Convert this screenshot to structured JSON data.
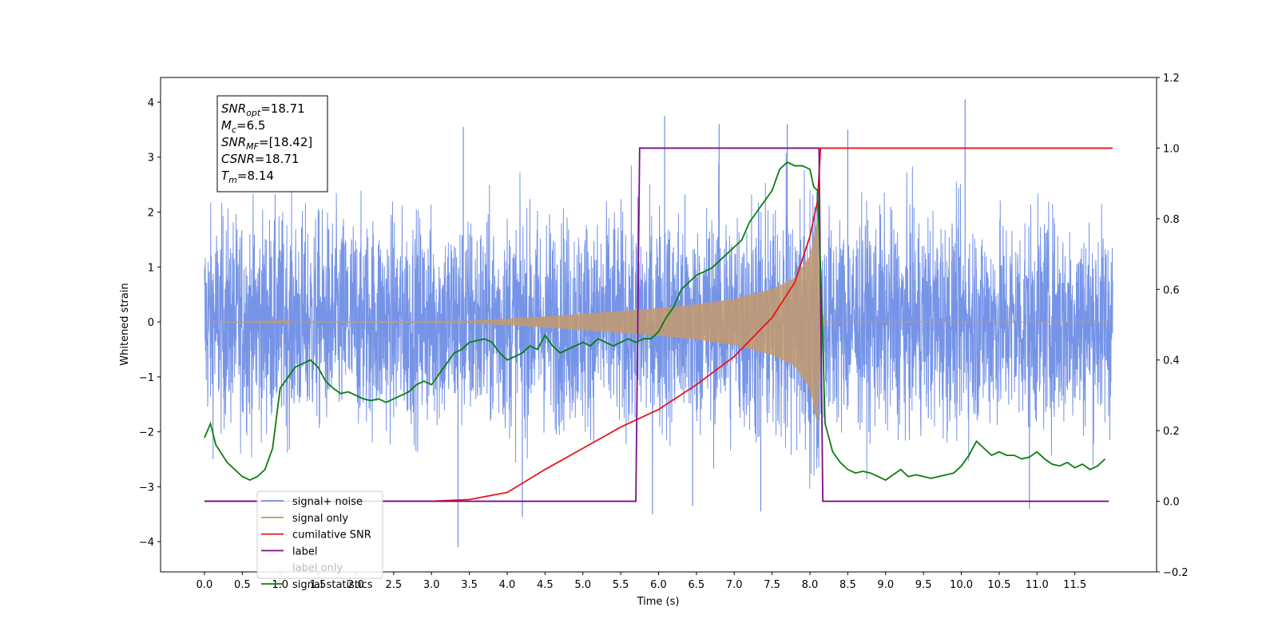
{
  "chart_data": {
    "type": "line",
    "title": "",
    "xlabel": "Time (s)",
    "ylabel": "Whitened strain",
    "xlim": [
      -0.58,
      12.58
    ],
    "ylim": [
      -4.55,
      4.45
    ],
    "y2lim": [
      -0.2,
      1.2
    ],
    "x_ticks": [
      0.0,
      0.5,
      1.0,
      1.5,
      2.0,
      2.5,
      3.0,
      3.5,
      4.0,
      4.5,
      5.0,
      5.5,
      6.0,
      6.5,
      7.0,
      7.5,
      8.0,
      8.5,
      9.0,
      9.5,
      10.0,
      10.5,
      11.0,
      11.5
    ],
    "x_tick_labels": [
      "0.0",
      "0.5",
      "1.0",
      "1.5",
      "2.0",
      "2.5",
      "3.0",
      "3.5",
      "4.0",
      "4.5",
      "5.0",
      "5.5",
      "6.0",
      "6.5",
      "7.0",
      "7.5",
      "8.0",
      "8.5",
      "9.0",
      "9.5",
      "10.0",
      "10.5",
      "11.0",
      "11.5"
    ],
    "y_ticks": [
      -4,
      -3,
      -2,
      -1,
      0,
      1,
      2,
      3,
      4
    ],
    "y_tick_labels": [
      "−4",
      "−3",
      "−2",
      "−1",
      "0",
      "1",
      "2",
      "3",
      "4"
    ],
    "y2_ticks": [
      -0.2,
      0.0,
      0.2,
      0.4,
      0.6,
      0.8,
      1.0,
      1.2
    ],
    "y2_tick_labels": [
      "−0.2",
      "0.0",
      "0.2",
      "0.4",
      "0.6",
      "0.8",
      "1.0",
      "1.2"
    ],
    "grid": false,
    "legend_position": "bottom-left",
    "info_box": {
      "lines": [
        {
          "main": "SNR",
          "sub": "opt",
          "rest": "=18.71"
        },
        {
          "main": "M",
          "sub": "c",
          "rest": "=6.5"
        },
        {
          "main": "SNR",
          "sub": "MF",
          "rest": "=[18.42]"
        },
        {
          "main": "CSNR",
          "sub": "",
          "rest": "=18.71"
        },
        {
          "main": "T",
          "sub": "m",
          "rest": "=8.14"
        }
      ]
    },
    "series": [
      {
        "name": "signal+ noise",
        "axis": "left",
        "color": "#6f8ee6",
        "kind": "noise",
        "x_range": [
          0.0,
          12.0
        ],
        "noise_band": [
          -1.9,
          2.0
        ],
        "peak_values": [
          4.05,
          3.75,
          3.6,
          3.6,
          3.55,
          3.5,
          -4.1,
          -3.55,
          -3.5,
          -3.45,
          -3.4,
          -3.35
        ]
      },
      {
        "name": "signal only",
        "axis": "left",
        "color": "#c49a6c",
        "kind": "chirp",
        "x_range": [
          0.0,
          12.0
        ],
        "envelope": {
          "x": [
            0.0,
            3.5,
            4.5,
            5.5,
            6.0,
            6.5,
            7.0,
            7.5,
            7.8,
            8.0,
            8.05,
            8.1,
            8.14,
            8.2,
            12.0
          ],
          "y": [
            0.0,
            0.02,
            0.1,
            0.2,
            0.25,
            0.32,
            0.42,
            0.6,
            0.8,
            1.2,
            1.5,
            1.9,
            0.3,
            0.0,
            0.0
          ]
        }
      },
      {
        "name": "cumilative SNR",
        "axis": "right",
        "color": "#e8141b",
        "x": [
          0.0,
          3.0,
          3.5,
          4.0,
          4.5,
          5.0,
          5.5,
          6.0,
          6.5,
          7.0,
          7.5,
          7.8,
          8.0,
          8.1,
          8.14,
          12.0
        ],
        "values": [
          0.0,
          0.0,
          0.005,
          0.025,
          0.09,
          0.15,
          0.21,
          0.26,
          0.33,
          0.41,
          0.52,
          0.62,
          0.75,
          0.85,
          1.0,
          1.0
        ]
      },
      {
        "name": "label",
        "axis": "right",
        "color": "#7a0f85",
        "x": [
          0.0,
          5.7,
          5.75,
          8.12,
          8.17,
          11.95
        ],
        "values": [
          0.0,
          0.0,
          1.0,
          1.0,
          0.0,
          0.0
        ]
      },
      {
        "name": "label only",
        "axis": "right",
        "color": "#cccccc",
        "hidden": true,
        "x": [],
        "values": []
      },
      {
        "name": "signal statistics",
        "axis": "right",
        "color": "#0a7d0f",
        "x": [
          0.0,
          0.08,
          0.15,
          0.3,
          0.5,
          0.6,
          0.7,
          0.8,
          0.9,
          1.0,
          1.1,
          1.2,
          1.3,
          1.4,
          1.5,
          1.6,
          1.7,
          1.8,
          1.9,
          2.0,
          2.1,
          2.2,
          2.3,
          2.4,
          2.5,
          2.6,
          2.7,
          2.8,
          2.9,
          3.0,
          3.1,
          3.2,
          3.3,
          3.4,
          3.5,
          3.6,
          3.7,
          3.8,
          3.9,
          4.0,
          4.1,
          4.2,
          4.3,
          4.4,
          4.5,
          4.6,
          4.7,
          4.8,
          4.9,
          5.0,
          5.1,
          5.2,
          5.3,
          5.4,
          5.5,
          5.6,
          5.7,
          5.8,
          5.9,
          6.0,
          6.1,
          6.2,
          6.3,
          6.4,
          6.5,
          6.6,
          6.7,
          6.8,
          6.9,
          7.0,
          7.1,
          7.2,
          7.3,
          7.4,
          7.5,
          7.6,
          7.7,
          7.8,
          7.9,
          8.0,
          8.05,
          8.1,
          8.15,
          8.2,
          8.3,
          8.4,
          8.5,
          8.6,
          8.7,
          8.8,
          8.9,
          9.0,
          9.1,
          9.2,
          9.3,
          9.4,
          9.5,
          9.6,
          9.7,
          9.8,
          9.9,
          10.0,
          10.1,
          10.2,
          10.3,
          10.4,
          10.5,
          10.6,
          10.7,
          10.8,
          10.9,
          11.0,
          11.1,
          11.2,
          11.3,
          11.4,
          11.5,
          11.6,
          11.7,
          11.8,
          11.9
        ],
        "values": [
          0.18,
          0.22,
          0.16,
          0.11,
          0.07,
          0.06,
          0.07,
          0.09,
          0.15,
          0.32,
          0.35,
          0.38,
          0.39,
          0.4,
          0.38,
          0.34,
          0.32,
          0.305,
          0.31,
          0.3,
          0.29,
          0.285,
          0.29,
          0.28,
          0.29,
          0.3,
          0.31,
          0.33,
          0.34,
          0.33,
          0.36,
          0.39,
          0.42,
          0.43,
          0.45,
          0.455,
          0.46,
          0.45,
          0.42,
          0.4,
          0.41,
          0.42,
          0.44,
          0.43,
          0.47,
          0.44,
          0.42,
          0.43,
          0.44,
          0.45,
          0.44,
          0.46,
          0.45,
          0.44,
          0.45,
          0.46,
          0.45,
          0.46,
          0.46,
          0.48,
          0.52,
          0.55,
          0.6,
          0.62,
          0.64,
          0.65,
          0.66,
          0.68,
          0.7,
          0.72,
          0.74,
          0.79,
          0.82,
          0.85,
          0.88,
          0.94,
          0.96,
          0.95,
          0.95,
          0.94,
          0.89,
          0.88,
          0.6,
          0.22,
          0.14,
          0.11,
          0.09,
          0.08,
          0.085,
          0.08,
          0.07,
          0.06,
          0.075,
          0.09,
          0.07,
          0.075,
          0.07,
          0.065,
          0.07,
          0.075,
          0.08,
          0.1,
          0.13,
          0.17,
          0.15,
          0.13,
          0.14,
          0.13,
          0.13,
          0.12,
          0.125,
          0.14,
          0.12,
          0.105,
          0.1,
          0.11,
          0.095,
          0.105,
          0.09,
          0.1,
          0.12
        ]
      }
    ]
  }
}
